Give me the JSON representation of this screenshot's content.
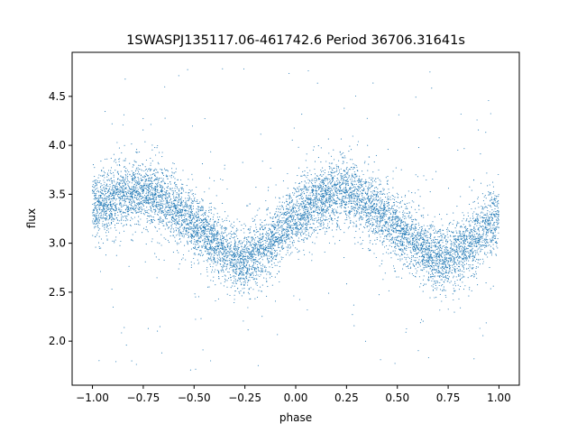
{
  "chart_data": {
    "type": "scatter",
    "title": "1SWASPJ135117.06-461742.6 Period 36706.31641s",
    "xlabel": "phase",
    "ylabel": "flux",
    "xlim": [
      -1.1,
      1.1
    ],
    "ylim": [
      1.55,
      4.95
    ],
    "xticks": [
      -1.0,
      -0.75,
      -0.5,
      -0.25,
      0.0,
      0.25,
      0.5,
      0.75,
      1.0
    ],
    "xtick_labels": [
      "−1.00",
      "−0.75",
      "−0.50",
      "−0.25",
      "0.00",
      "0.25",
      "0.50",
      "0.75",
      "1.00"
    ],
    "yticks": [
      2.0,
      2.5,
      3.0,
      3.5,
      4.0,
      4.5
    ],
    "ytick_labels": [
      "2.0",
      "2.5",
      "3.0",
      "3.5",
      "4.0",
      "4.5"
    ],
    "grid": false,
    "marker_color": "#1f77b4",
    "series": [
      {
        "x": [
          -1.0,
          -0.9,
          -0.8,
          -0.7,
          -0.6,
          -0.5,
          -0.4,
          -0.3,
          -0.25,
          -0.2,
          -0.1,
          0.0,
          0.1,
          0.2,
          0.25,
          0.3,
          0.4,
          0.5,
          0.6,
          0.7,
          0.75,
          0.8,
          0.9,
          1.0
        ],
        "y": [
          3.35,
          3.45,
          3.52,
          3.5,
          3.38,
          3.2,
          3.0,
          2.85,
          2.83,
          2.88,
          3.05,
          3.28,
          3.45,
          3.52,
          3.52,
          3.47,
          3.33,
          3.15,
          2.97,
          2.85,
          2.83,
          2.9,
          3.08,
          3.3
        ]
      }
    ]
  }
}
